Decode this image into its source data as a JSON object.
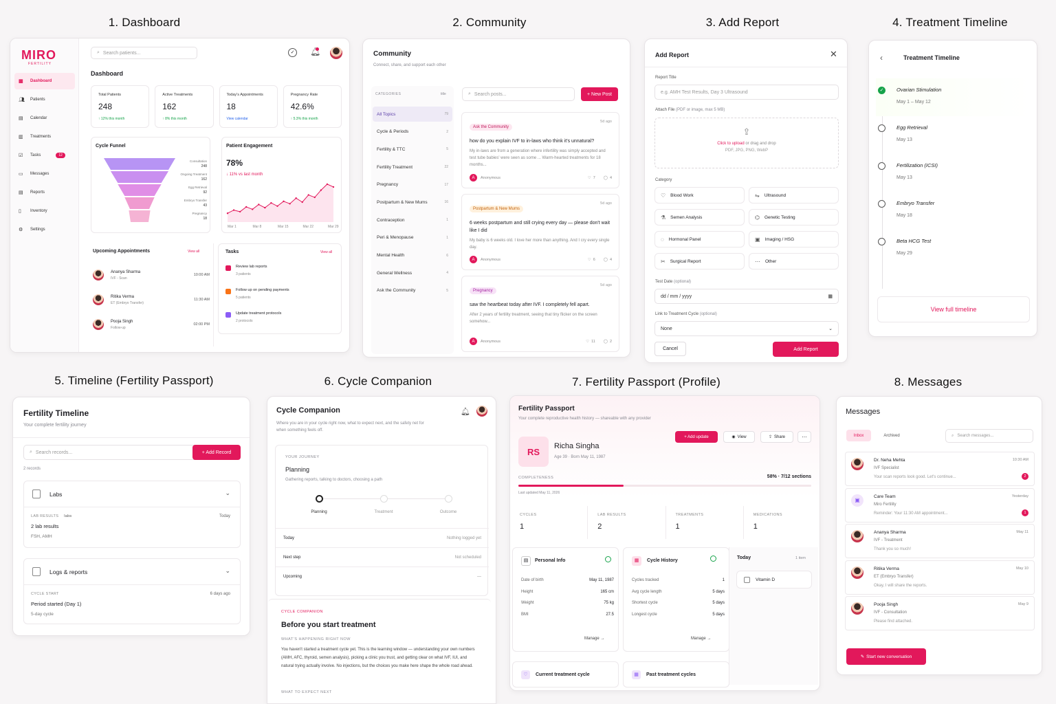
{
  "titles": {
    "t1": "1. Dashboard",
    "t2": "2. Community",
    "t3": "3. Add Report",
    "t4": "4. Treatment Timeline",
    "t5": "5. Timeline (Fertility Passport)",
    "t6": "6. Cycle Companion",
    "t7": "7. Fertility Passport (Profile)",
    "t8": "8. Messages"
  },
  "dash": {
    "logo": "MIRO",
    "logo_sub": "FERTILITY",
    "search": "Search patients...",
    "page_title": "Dashboard",
    "nav": [
      {
        "label": "Dashboard",
        "icon": "grid-icon"
      },
      {
        "label": "Patients",
        "icon": "users-icon"
      },
      {
        "label": "Calendar",
        "icon": "calendar-icon"
      },
      {
        "label": "Treatments",
        "icon": "clipboard-icon"
      },
      {
        "label": "Tasks",
        "icon": "task-icon",
        "badge": "12"
      },
      {
        "label": "Messages",
        "icon": "message-icon"
      },
      {
        "label": "Reports",
        "icon": "report-icon"
      },
      {
        "label": "Inventory",
        "icon": "inventory-icon"
      },
      {
        "label": "Settings",
        "icon": "settings-icon"
      }
    ],
    "stats": [
      {
        "label": "Total Patients",
        "value": "248",
        "sub": "↑ 12% this month"
      },
      {
        "label": "Active Treatments",
        "value": "162",
        "sub": "↑ 8% this month"
      },
      {
        "label": "Today's Appointments",
        "value": "18",
        "sub": "View calendar"
      },
      {
        "label": "Pregnancy Rate",
        "value": "42.6%",
        "sub": "↑ 5.3% this month"
      }
    ],
    "funnel": {
      "title": "Cycle Funnel",
      "stages": [
        {
          "label": "Consultation",
          "value": "248"
        },
        {
          "label": "Ongoing Treatment",
          "value": "162"
        },
        {
          "label": "Egg Retrieval",
          "value": "92"
        },
        {
          "label": "Embryo Transfer",
          "value": "43"
        },
        {
          "label": "Pregnancy",
          "value": "18"
        }
      ]
    },
    "engagement": {
      "title": "Patient Engagement",
      "value": "78%",
      "sub": "↓ 11% vs last month",
      "xlabels": [
        "Mar 1",
        "Mar 8",
        "Mar 15",
        "Mar 22",
        "Mar 29"
      ],
      "series": [
        22,
        30,
        26,
        38,
        32,
        44,
        36,
        48,
        40,
        52,
        46,
        60,
        50,
        68,
        62,
        80,
        95,
        88
      ]
    },
    "appointments": {
      "title": "Upcoming Appointments",
      "view_all": "View all",
      "items": [
        {
          "name": "Ananya Sharma",
          "sub": "IVF - Scan",
          "time": "10:00 AM"
        },
        {
          "name": "Ritika Verma",
          "sub": "ET (Embryo Transfer)",
          "time": "11:30 AM"
        },
        {
          "name": "Pooja Singh",
          "sub": "Follow-up",
          "time": "02:00 PM"
        }
      ]
    },
    "tasks": {
      "title": "Tasks",
      "view_all": "View all",
      "items": [
        {
          "label": "Review lab reports",
          "sub": "3 patients",
          "color": "#e2185b"
        },
        {
          "label": "Follow up on pending payments",
          "sub": "5 patients",
          "color": "#f97316"
        },
        {
          "label": "Update treatment protocols",
          "sub": "2 protocols",
          "color": "#8b5cf6"
        }
      ]
    }
  },
  "community": {
    "title": "Community",
    "subtitle": "Connect, share, and support each other",
    "cat_header": "CATEGORIES",
    "cat_count_header": "title",
    "search": "Search posts...",
    "new_post": "+ New Post",
    "categories": [
      {
        "label": "All Topics",
        "count": "79"
      },
      {
        "label": "Cycle & Periods",
        "count": "2"
      },
      {
        "label": "Fertility & TTC",
        "count": "5"
      },
      {
        "label": "Fertility Treatment",
        "count": "22"
      },
      {
        "label": "Pregnancy",
        "count": "17"
      },
      {
        "label": "Postpartum & New Mums",
        "count": "16"
      },
      {
        "label": "Contraception",
        "count": "1"
      },
      {
        "label": "Peri & Menopause",
        "count": "1"
      },
      {
        "label": "Mental Health",
        "count": "6"
      },
      {
        "label": "General Wellness",
        "count": "4"
      },
      {
        "label": "Ask the Community",
        "count": "5"
      }
    ],
    "posts": [
      {
        "tag": "Ask the Community",
        "ago": "5d ago",
        "title": "how do you explain IVF to in-laws who think it's unnatural?",
        "body": "My in-laws are from a generation where infertility was simply accepted and test tube babies' were seen as some ... Warm-hearted treatments for 18 months...",
        "author": "Anonymous",
        "likes": "7",
        "comments": "4",
        "tagbg": "#fde7f0",
        "tagfg": "#c0185a"
      },
      {
        "tag": "Postpartum & New Mums",
        "ago": "5d ago",
        "title": "6 weeks postpartum and still crying every day — please don't wait like I did",
        "body": "My baby is 6 weeks old. I love her more than anything. And I cry every single day.",
        "author": "Anonymous",
        "likes": "6",
        "comments": "4",
        "tagbg": "#fff1dd",
        "tagfg": "#c2620b"
      },
      {
        "tag": "Pregnancy",
        "ago": "5d ago",
        "title": "saw the heartbeat today after IVF. I completely fell apart.",
        "body": "After 2 years of fertility treatment, seeing that tiny flicker on the screen somehow...",
        "author": "Anonymous",
        "likes": "11",
        "comments": "2",
        "tagbg": "#f7e2f7",
        "tagfg": "#a3239f"
      }
    ]
  },
  "report": {
    "title": "Add Report",
    "title_label": "Report Title",
    "title_ph": "e.g. AMH Test Results, Day 3 Ultrasound",
    "attach_label": "Attach File",
    "attach_hint": "(PDF or image, max 5 MB)",
    "upload_link": "Click to upload",
    "upload_rest": " or drag and drop",
    "upload_types": "PDF, JPG, PNG, WebP",
    "category_label": "Category",
    "categories": [
      {
        "label": "Blood Work",
        "icon": "heart-icon"
      },
      {
        "label": "Ultrasound",
        "icon": "ultrasound-icon"
      },
      {
        "label": "Semen Analysis",
        "icon": "flask-icon"
      },
      {
        "label": "Genetic Testing",
        "icon": "dna-icon"
      },
      {
        "label": "Hormonal Panel",
        "icon": "pill-icon"
      },
      {
        "label": "Imaging / HSG",
        "icon": "image-icon"
      },
      {
        "label": "Surgical Report",
        "icon": "scissors-icon"
      },
      {
        "label": "Other",
        "icon": "dots-icon"
      }
    ],
    "date_label": "Test Date",
    "date_opt": "(optional)",
    "date_value": "dd / mm / yyyy",
    "link_label": "Link to Treatment Cycle",
    "link_opt": "(optional)",
    "link_value": "None",
    "cancel": "Cancel",
    "submit": "Add Report"
  },
  "timeline": {
    "title": "Treatment Timeline",
    "items": [
      {
        "label": "Ovarian Stimulation",
        "date": "May 1 – May 12",
        "done": true
      },
      {
        "label": "Egg Retrieval",
        "date": "May 13",
        "done": false
      },
      {
        "label": "Fertilization (ICSI)",
        "date": "May 13",
        "done": false
      },
      {
        "label": "Embryo Transfer",
        "date": "May 18",
        "done": false
      },
      {
        "label": "Beta HCG Test",
        "date": "May 29",
        "done": false
      }
    ],
    "view_full": "View full timeline"
  },
  "ftimeline": {
    "title": "Fertility Timeline",
    "subtitle": "Your complete fertility journey",
    "search": "Search records...",
    "add": "+ Add Record",
    "count": "2 records",
    "groups": [
      {
        "name": "Labs",
        "meta": "LAB RESULTS",
        "meta2": "labs",
        "when": "Today",
        "line1": "2 lab results",
        "line2": "FSH, AMH"
      },
      {
        "name": "Logs & reports",
        "meta": "CYCLE START",
        "meta2": "",
        "when": "6 days ago",
        "line1": "Period started (Day 1)",
        "line2": "5-day cycle"
      }
    ]
  },
  "cycle": {
    "title": "Cycle Companion",
    "subtitle": "Where you are in your cycle right now, what to expect next, and the safety net for when something feels off.",
    "journey_label": "YOUR JOURNEY",
    "stage": "Planning",
    "stage_desc": "Gathering reports, talking to doctors, choosing a path",
    "steps": [
      "Planning",
      "Treatment",
      "Outcome"
    ],
    "rows": [
      {
        "label": "Today",
        "value": "Nothing logged yet"
      },
      {
        "label": "Next step",
        "value": "Not scheduled"
      },
      {
        "label": "Upcoming",
        "value": "—"
      }
    ],
    "section_label": "CYCLE COMPANION",
    "section_title": "Before you start treatment",
    "happening_label": "WHAT'S HAPPENING RIGHT NOW",
    "happening_text": "You haven't started a treatment cycle yet. This is the learning window — understanding your own numbers (AMH, AFC, thyroid, semen analysis), picking a clinic you trust, and getting clear on what IVF, IUI, and natural trying actually involve. No injections, but the choices you make here shape the whole road ahead.",
    "expect_label": "WHAT TO EXPECT NEXT"
  },
  "passport": {
    "title": "Fertility Passport",
    "subtitle": "Your complete reproductive health history — shareable with any provider",
    "initials": "RS",
    "name": "Richa Singha",
    "meta": "Age 39 · Born May 11, 1987",
    "add_update": "+ Add update",
    "view": "View",
    "share": "Share",
    "completeness_label": "COMPLETENESS",
    "completeness_value": "58% · 7/12 sections",
    "progress": 0.58,
    "updated": "Last updated May 11, 2026",
    "stats": [
      {
        "label": "CYCLES",
        "value": "1"
      },
      {
        "label": "LAB RESULTS",
        "value": "2"
      },
      {
        "label": "TREATMENTS",
        "value": "1"
      },
      {
        "label": "MEDICATIONS",
        "value": "1"
      }
    ],
    "personal": {
      "title": "Personal Info",
      "rows": [
        {
          "k": "Date of birth",
          "v": "May 11, 1987"
        },
        {
          "k": "Height",
          "v": "165 cm"
        },
        {
          "k": "Weight",
          "v": "75 kg"
        },
        {
          "k": "BMI",
          "v": "27.5"
        }
      ],
      "manage": "Manage →"
    },
    "history": {
      "title": "Cycle History",
      "rows": [
        {
          "k": "Cycles tracked",
          "v": "1"
        },
        {
          "k": "Avg cycle length",
          "v": "5 days"
        },
        {
          "k": "Shortest cycle",
          "v": "5 days"
        },
        {
          "k": "Longest cycle",
          "v": "5 days"
        }
      ],
      "manage": "Manage →"
    },
    "today": {
      "title": "Today",
      "count": "1 item",
      "item": "Vitamin D"
    },
    "current": "Current treatment cycle",
    "past": "Past treatment cycles"
  },
  "messages": {
    "title": "Messages",
    "tab_inbox": "Inbox",
    "tab_archived": "Archived",
    "search": "Search messages...",
    "items": [
      {
        "name": "Dr. Neha Mehta",
        "role": "IVF Specialist",
        "preview": "Your scan reports look good. Let's continue...",
        "time": "10:30 AM",
        "badge": "2"
      },
      {
        "name": "Care Team",
        "role": "Miro Fertility",
        "preview": "Reminder: Your 11:30 AM appointment...",
        "time": "Yesterday",
        "badge": "1"
      },
      {
        "name": "Ananya Sharma",
        "role": "IVF - Treatment",
        "preview": "Thank you so much!",
        "time": "May 11",
        "badge": ""
      },
      {
        "name": "Ritika Verma",
        "role": "ET (Embryo Transfer)",
        "preview": "Okay, I will share the reports.",
        "time": "May 10",
        "badge": ""
      },
      {
        "name": "Pooja Singh",
        "role": "IVF - Consultation",
        "preview": "Please find attached.",
        "time": "May 9",
        "badge": ""
      }
    ],
    "new_conv": "Start new conversation"
  },
  "colors": {
    "accent": "#e2185b",
    "green": "#16a34a"
  }
}
